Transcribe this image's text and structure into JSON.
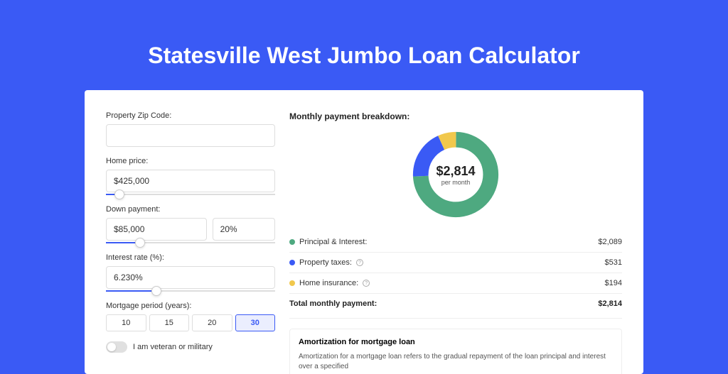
{
  "page": {
    "title": "Statesville West Jumbo Loan Calculator",
    "background_color": "#3a5af5",
    "card_background": "#ffffff"
  },
  "form": {
    "zip": {
      "label": "Property Zip Code:",
      "value": ""
    },
    "home_price": {
      "label": "Home price:",
      "value": "$425,000",
      "slider_pct": 8
    },
    "down_payment": {
      "label": "Down payment:",
      "value": "$85,000",
      "pct_value": "20%",
      "slider_pct": 20
    },
    "interest_rate": {
      "label": "Interest rate (%):",
      "value": "6.230%",
      "slider_pct": 30
    },
    "mortgage_period": {
      "label": "Mortgage period (years):",
      "options": [
        "10",
        "15",
        "20",
        "30"
      ],
      "selected": "30"
    },
    "veteran": {
      "label": "I am veteran or military",
      "on": false
    }
  },
  "breakdown": {
    "title": "Monthly payment breakdown:",
    "donut": {
      "center_value": "$2,814",
      "center_sub": "per month",
      "slices": [
        {
          "label": "Principal & Interest:",
          "value": "$2,089",
          "color": "#4ea980",
          "pct": 74.2
        },
        {
          "label": "Property taxes:",
          "value": "$531",
          "color": "#3a5af5",
          "pct": 18.9,
          "has_info": true
        },
        {
          "label": "Home insurance:",
          "value": "$194",
          "color": "#f1c84c",
          "pct": 6.9,
          "has_info": true
        }
      ]
    },
    "total": {
      "label": "Total monthly payment:",
      "value": "$2,814"
    }
  },
  "amortization": {
    "title": "Amortization for mortgage loan",
    "text": "Amortization for a mortgage loan refers to the gradual repayment of the loan principal and interest over a specified"
  }
}
